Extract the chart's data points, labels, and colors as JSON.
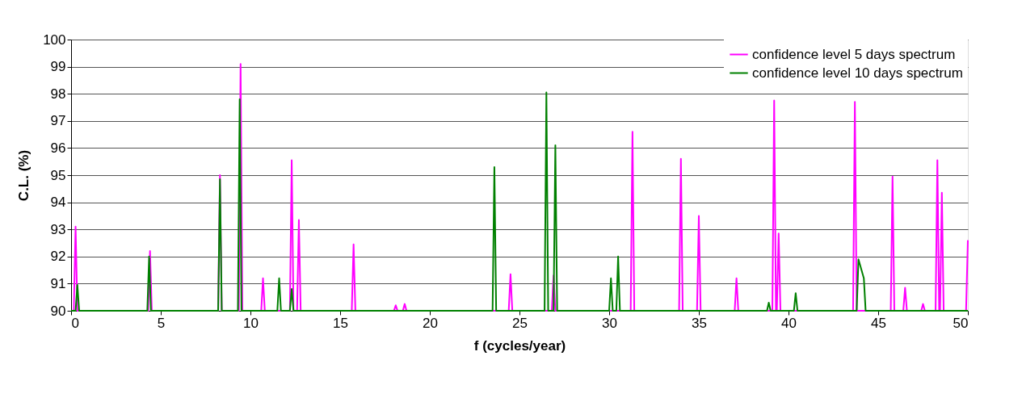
{
  "chart_data": {
    "type": "line",
    "xlabel": "f (cycles/year)",
    "ylabel": "C.L. (%)",
    "xlim": [
      0,
      50
    ],
    "ylim": [
      90,
      100
    ],
    "xticks": [
      0,
      5,
      10,
      15,
      20,
      25,
      30,
      35,
      40,
      45,
      50
    ],
    "yticks": [
      90,
      91,
      92,
      93,
      94,
      95,
      96,
      97,
      98,
      99,
      100
    ],
    "grid": "y",
    "legend": "top right",
    "marker": "none",
    "line_style": "solid",
    "series": [
      {
        "name": "confidence level 5 days spectrum",
        "color": "#ff00ff",
        "x": [
          0,
          0.15,
          0.25,
          0.35,
          4.3,
          4.4,
          4.5,
          8.2,
          8.3,
          8.4,
          9.35,
          9.45,
          9.55,
          10.6,
          10.7,
          10.8,
          12.2,
          12.3,
          12.4,
          12.6,
          12.7,
          12.8,
          15.65,
          15.75,
          15.85,
          18.0,
          18.1,
          18.2,
          18.5,
          18.6,
          18.7,
          24.4,
          24.5,
          24.6,
          26.8,
          26.9,
          27.0,
          31.2,
          31.3,
          31.4,
          33.9,
          34.0,
          34.1,
          34.9,
          35.0,
          35.1,
          37.0,
          37.1,
          37.2,
          39.1,
          39.2,
          39.3,
          39.35,
          39.45,
          39.55,
          43.6,
          43.7,
          43.8,
          45.7,
          45.8,
          45.9,
          46.4,
          46.5,
          46.6,
          47.4,
          47.5,
          47.6,
          48.2,
          48.3,
          48.4,
          48.45,
          48.55,
          48.65,
          49.9,
          50
        ],
        "values": [
          90,
          90,
          93.1,
          90,
          90,
          92.2,
          90,
          90,
          95.0,
          90,
          90,
          99.1,
          90,
          90,
          91.2,
          90,
          90,
          95.55,
          90,
          90,
          93.35,
          90,
          90,
          92.45,
          90,
          90,
          90.2,
          90,
          90,
          90.25,
          90,
          90,
          91.35,
          90,
          90,
          91.3,
          90,
          90,
          96.6,
          90,
          90,
          95.6,
          90,
          90,
          93.5,
          90,
          90,
          91.2,
          90,
          90,
          97.75,
          90,
          90,
          92.85,
          90,
          90,
          97.7,
          90,
          90,
          94.95,
          90,
          90,
          90.85,
          90,
          90,
          90.25,
          90,
          90,
          95.55,
          90,
          90,
          94.35,
          90,
          90,
          92.6
        ]
      },
      {
        "name": "confidence level 10 days spectrum",
        "color": "#008000",
        "x": [
          0,
          0.25,
          0.35,
          0.45,
          4.25,
          4.35,
          4.45,
          8.2,
          8.3,
          8.4,
          9.3,
          9.4,
          9.5,
          11.5,
          11.6,
          11.7,
          12.2,
          12.3,
          12.4,
          23.5,
          23.6,
          23.7,
          26.4,
          26.5,
          26.6,
          26.9,
          27.0,
          27.1,
          30.0,
          30.1,
          30.2,
          30.4,
          30.5,
          30.6,
          38.8,
          38.9,
          39.0,
          40.3,
          40.4,
          40.5,
          43.8,
          43.9,
          44.2,
          44.3,
          50
        ],
        "values": [
          90,
          90,
          90.95,
          90,
          90,
          92.0,
          90,
          90,
          94.85,
          90,
          90,
          97.8,
          90,
          90,
          91.2,
          90,
          90,
          90.8,
          90,
          90,
          95.3,
          90,
          90,
          98.05,
          90,
          90,
          96.1,
          90,
          90,
          91.2,
          90,
          90,
          92.0,
          90,
          90,
          90.3,
          90,
          90,
          90.65,
          90,
          90,
          91.9,
          91.2,
          90,
          90
        ]
      }
    ]
  }
}
